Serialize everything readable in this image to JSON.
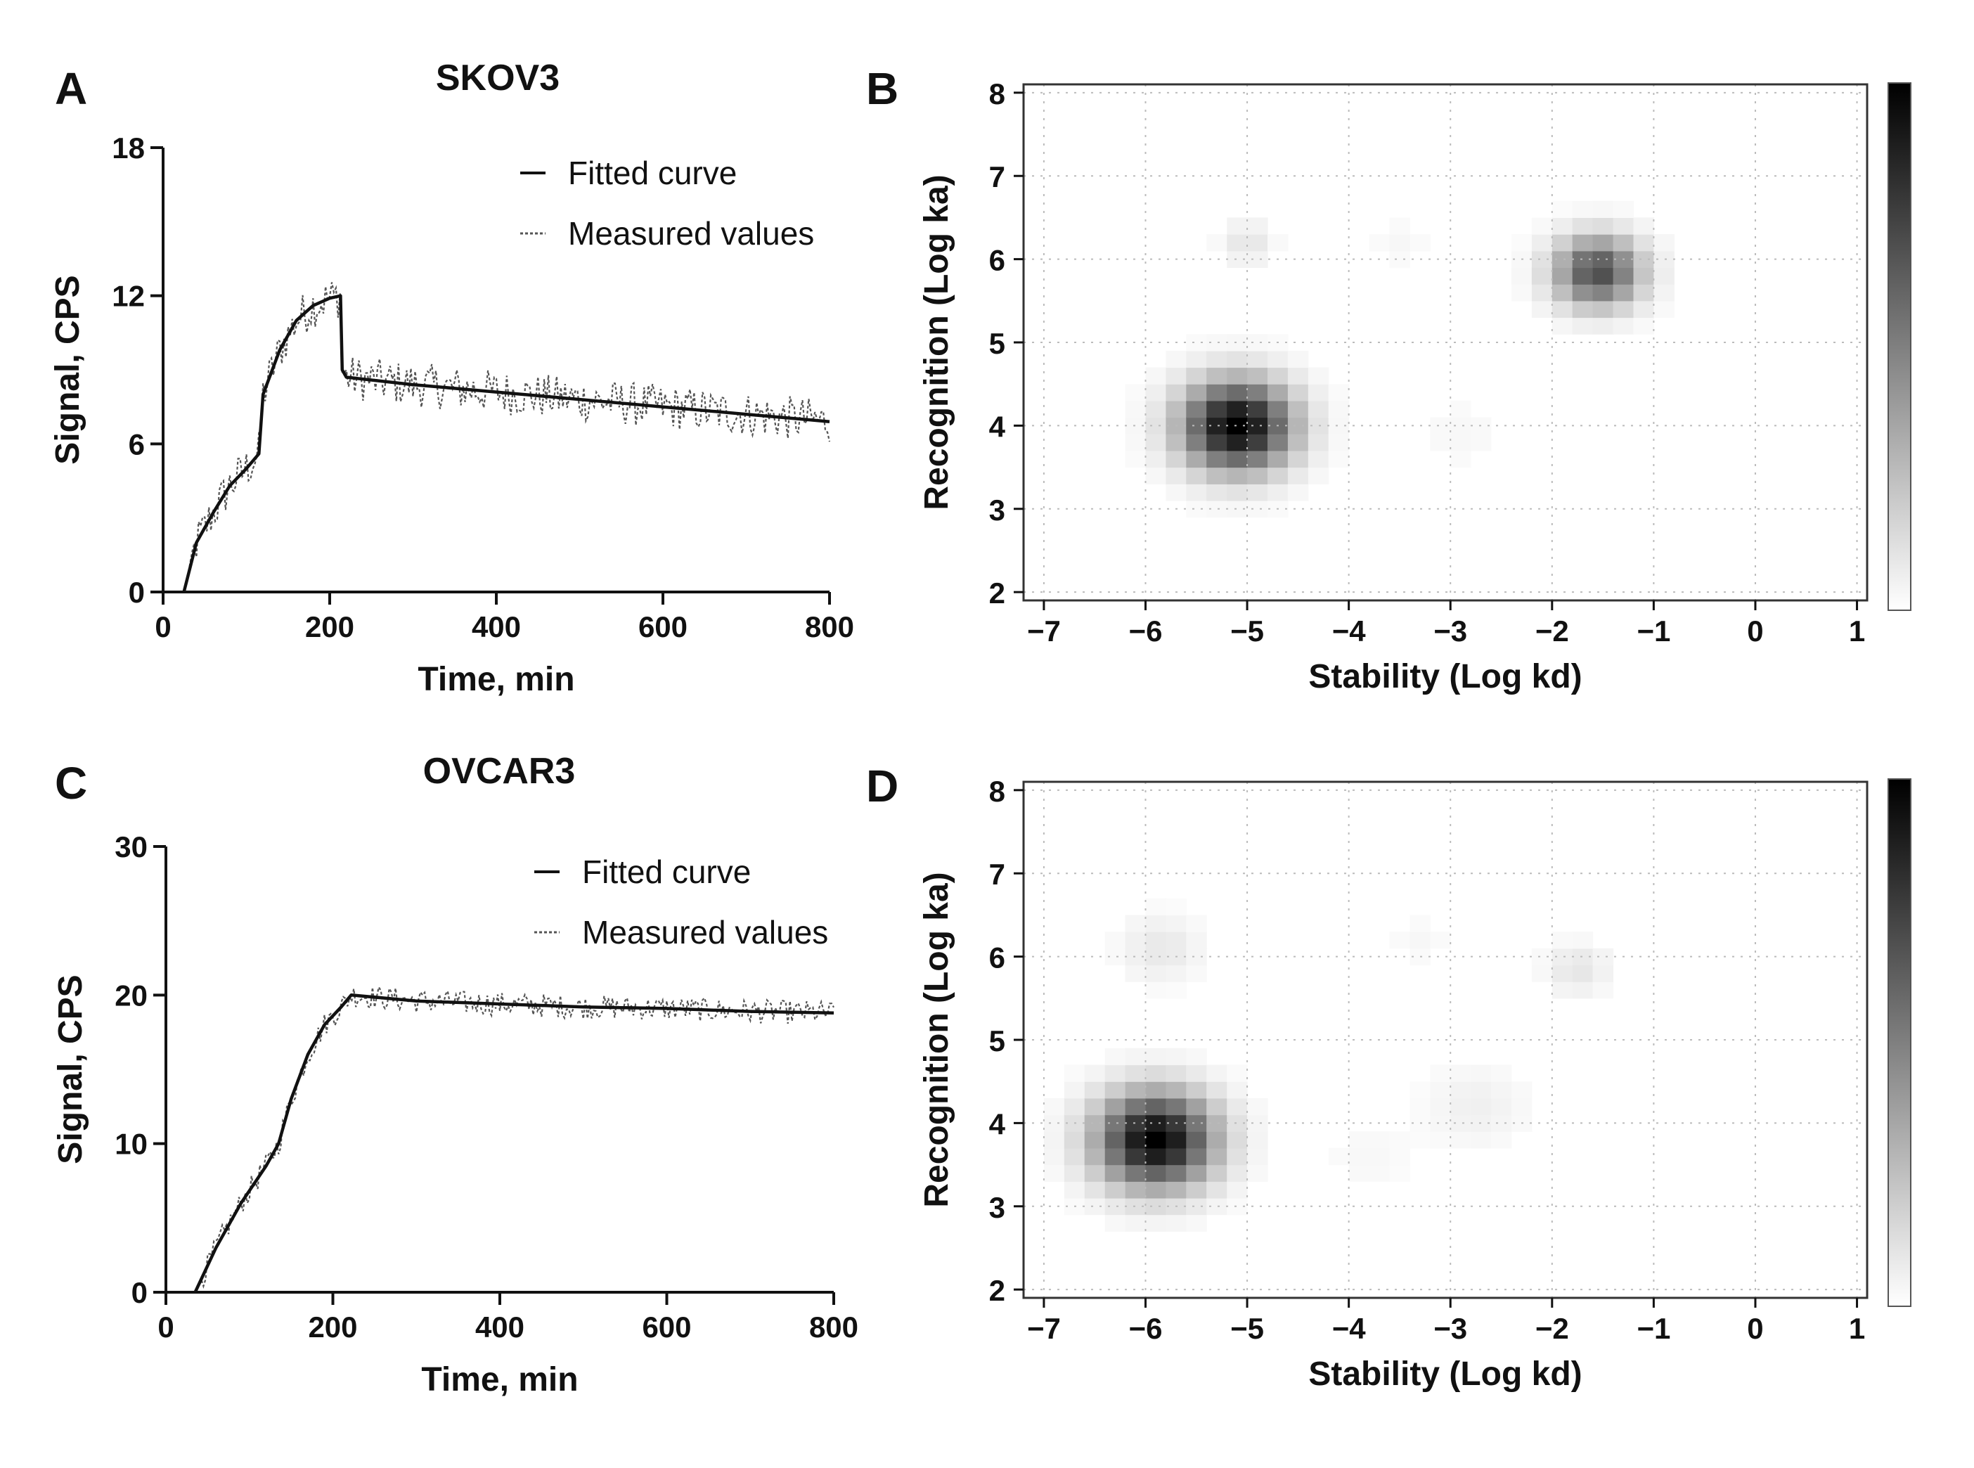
{
  "chart_data": [
    {
      "panel": "A",
      "type": "line",
      "title": "SKOV3",
      "xlabel": "Time, min",
      "ylabel": "Signal, CPS",
      "xlim": [
        0,
        800
      ],
      "ylim": [
        0,
        18
      ],
      "xticks": [
        0,
        200,
        400,
        600,
        800
      ],
      "yticks": [
        0,
        6,
        12,
        18
      ],
      "legend": {
        "placement": "top-right",
        "entries": [
          "Fitted curve",
          "Measured values"
        ]
      },
      "series": [
        {
          "name": "Fitted curve",
          "style": "solid",
          "x": [
            25,
            40,
            60,
            80,
            100,
            115,
            120,
            140,
            160,
            180,
            200,
            213,
            215,
            220,
            300,
            400,
            500,
            600,
            700,
            800
          ],
          "y": [
            0,
            2.0,
            3.2,
            4.3,
            5.0,
            5.6,
            8.0,
            9.8,
            11.0,
            11.6,
            11.9,
            12.0,
            9.0,
            8.7,
            8.4,
            8.1,
            7.8,
            7.5,
            7.2,
            6.9
          ]
        },
        {
          "name": "Measured values",
          "style": "dotted",
          "x_range": [
            25,
            800
          ],
          "noise": 0.9
        }
      ]
    },
    {
      "panel": "B",
      "type": "heatmap",
      "title": "",
      "xlabel": "Stability (Log kd)",
      "ylabel": "Recognition (Log ka)",
      "xlim": [
        -7.2,
        1.1
      ],
      "ylim": [
        1.9,
        8.1
      ],
      "xticks": [
        -7,
        -6,
        -5,
        -4,
        -3,
        -2,
        -1,
        0,
        1
      ],
      "yticks": [
        2,
        3,
        4,
        5,
        6,
        7,
        8
      ],
      "xtick_labels": [
        "−7",
        "−6",
        "−5",
        "−4",
        "−3",
        "−2",
        "−1",
        "0",
        "1"
      ],
      "grid": true,
      "colorbar": "grayscale, white (low) to black (high)",
      "peaks": [
        {
          "log_kd": -5.1,
          "log_ka": 4.0,
          "intensity": 1.0,
          "spread": 0.38
        },
        {
          "log_kd": -1.55,
          "log_ka": 5.85,
          "intensity": 0.7,
          "spread": 0.3
        },
        {
          "log_kd": -5.0,
          "log_ka": 6.2,
          "intensity": 0.1,
          "spread": 0.18
        },
        {
          "log_kd": -2.9,
          "log_ka": 3.9,
          "intensity": 0.03,
          "spread": 0.3
        },
        {
          "log_kd": -3.5,
          "log_ka": 6.2,
          "intensity": 0.03,
          "spread": 0.2
        }
      ]
    },
    {
      "panel": "C",
      "type": "line",
      "title": "OVCAR3",
      "xlabel": "Time, min",
      "ylabel": "Signal, CPS",
      "xlim": [
        0,
        800
      ],
      "ylim": [
        0,
        30
      ],
      "xticks": [
        0,
        200,
        400,
        600,
        800
      ],
      "yticks": [
        0,
        10,
        20,
        30
      ],
      "legend": {
        "placement": "top-right",
        "entries": [
          "Fitted curve",
          "Measured values"
        ]
      },
      "series": [
        {
          "name": "Fitted curve",
          "style": "solid",
          "x": [
            35,
            60,
            90,
            120,
            135,
            150,
            170,
            190,
            210,
            222,
            300,
            400,
            500,
            600,
            700,
            800
          ],
          "y": [
            0,
            3.0,
            6.0,
            8.5,
            10.0,
            13.0,
            16.0,
            18.0,
            19.2,
            20.0,
            19.6,
            19.4,
            19.2,
            19.1,
            18.9,
            18.8
          ]
        },
        {
          "name": "Measured values",
          "style": "dotted",
          "x_range": [
            35,
            800
          ],
          "noise": 0.8
        }
      ]
    },
    {
      "panel": "D",
      "type": "heatmap",
      "title": "",
      "xlabel": "Stability (Log kd)",
      "ylabel": "Recognition (Log ka)",
      "xlim": [
        -7.2,
        1.1
      ],
      "ylim": [
        1.9,
        8.1
      ],
      "xticks": [
        -7,
        -6,
        -5,
        -4,
        -3,
        -2,
        -1,
        0,
        1
      ],
      "yticks": [
        2,
        3,
        4,
        5,
        6,
        7,
        8
      ],
      "xtick_labels": [
        "−7",
        "−6",
        "−5",
        "−4",
        "−3",
        "−2",
        "−1",
        "0",
        "1"
      ],
      "grid": true,
      "colorbar": "grayscale, white (low) to black (high)",
      "peaks": [
        {
          "log_kd": -5.9,
          "log_ka": 3.8,
          "intensity": 1.0,
          "spread": 0.4
        },
        {
          "log_kd": -5.85,
          "log_ka": 6.1,
          "intensity": 0.09,
          "spread": 0.28
        },
        {
          "log_kd": -1.75,
          "log_ka": 5.85,
          "intensity": 0.1,
          "spread": 0.22
        },
        {
          "log_kd": -2.75,
          "log_ka": 4.2,
          "intensity": 0.06,
          "spread": 0.35
        },
        {
          "log_kd": -3.3,
          "log_ka": 6.2,
          "intensity": 0.03,
          "spread": 0.22
        },
        {
          "log_kd": -3.8,
          "log_ka": 3.6,
          "intensity": 0.03,
          "spread": 0.3
        }
      ]
    }
  ]
}
